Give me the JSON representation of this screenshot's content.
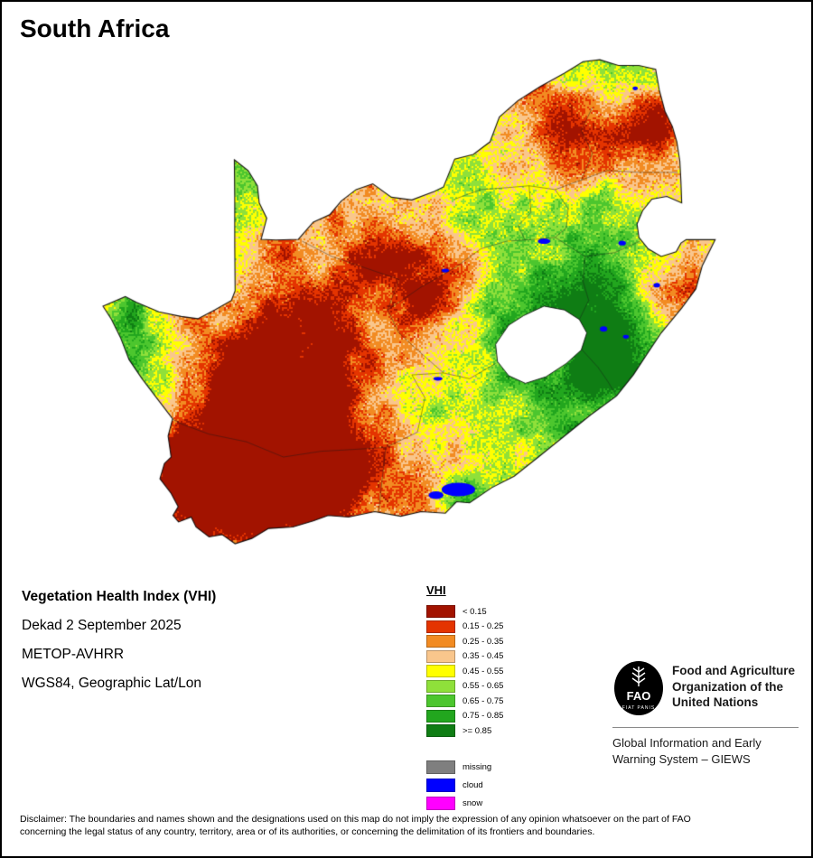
{
  "page": {
    "title": "South Africa"
  },
  "info": {
    "product_title": "Vegetation Health Index (VHI)",
    "dekad": "Dekad 2 September 2025",
    "sensor": "METOP-AVHRR",
    "projection": "WGS84, Geographic Lat/Lon"
  },
  "legend": {
    "title": "VHI",
    "classes": [
      {
        "label": "< 0.15",
        "color": "#a21300"
      },
      {
        "label": "0.15 - 0.25",
        "color": "#e43400"
      },
      {
        "label": "0.25 - 0.35",
        "color": "#f28b22"
      },
      {
        "label": "0.35 - 0.45",
        "color": "#f9c68c"
      },
      {
        "label": "0.45 - 0.55",
        "color": "#ffff00"
      },
      {
        "label": "0.55 - 0.65",
        "color": "#8fe03a"
      },
      {
        "label": "0.65 - 0.75",
        "color": "#4cc62e"
      },
      {
        "label": "0.75 - 0.85",
        "color": "#22a61e"
      },
      {
        "label": ">= 0.85",
        "color": "#0f7d14"
      }
    ],
    "extras": [
      {
        "label": "missing",
        "color": "#7f7f7f"
      },
      {
        "label": "cloud",
        "color": "#0000ff"
      },
      {
        "label": "snow",
        "color": "#ff00ff"
      }
    ]
  },
  "footer": {
    "logo_text": "FAO",
    "logo_motto": "FIAT PANIS",
    "org_lines": [
      "Food and Agriculture",
      "Organization of the",
      "United Nations"
    ],
    "giews_lines": [
      "Global Information and Early",
      "Warning System – GIEWS"
    ]
  },
  "disclaimer": {
    "line1": "Disclaimer: The boundaries and names shown and the designations used on this map do not imply the expression of any opinion whatsoever on the part of FAO",
    "line2": "concerning the legal status of any country, territory, area or of its authorities, or concerning the delimitation of its frontiers and boundaries."
  }
}
